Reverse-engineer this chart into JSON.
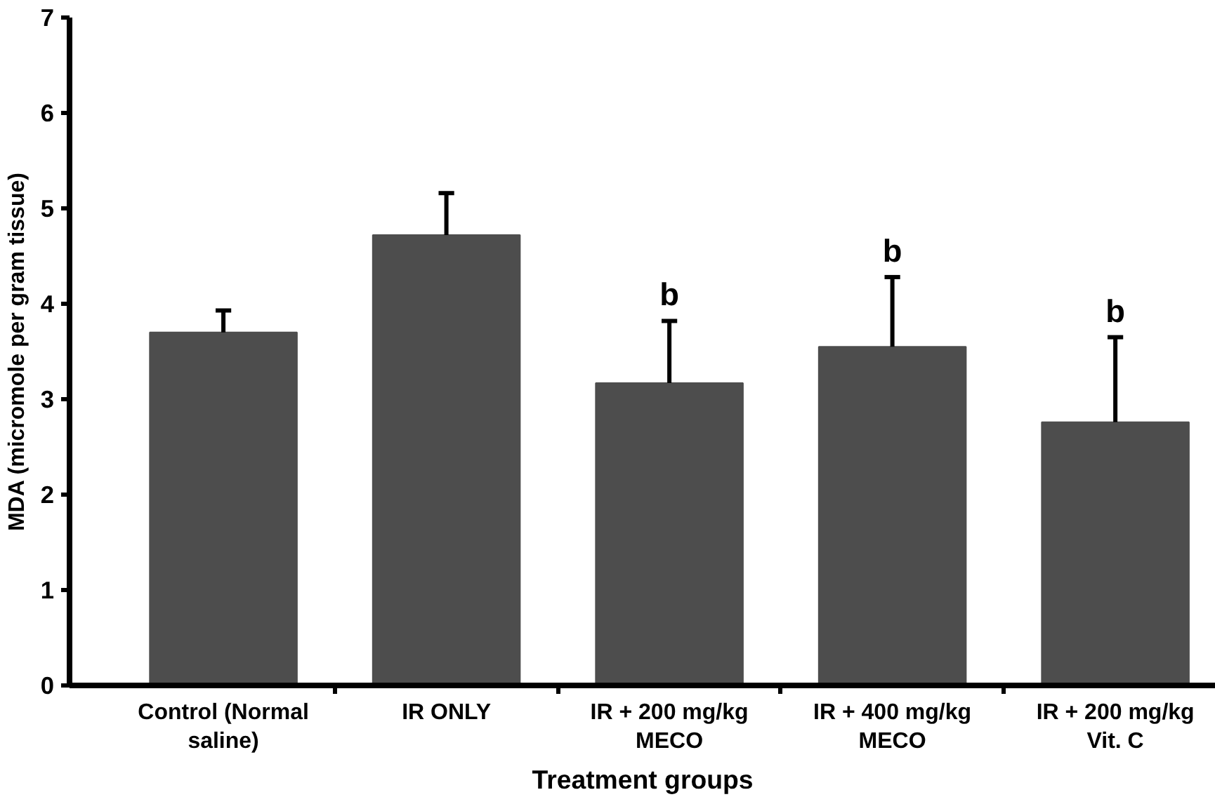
{
  "chart_data": {
    "type": "bar",
    "xlabel": "Treatment groups",
    "ylabel": "MDA (micromole per gram tissue)",
    "categories": [
      "Control (Normal saline)",
      "IR ONLY",
      "IR + 200 mg/kg MECO",
      "IR + 400 mg/kg MECO",
      "IR + 200 mg/kg Vit. C"
    ],
    "values": [
      3.7,
      4.72,
      3.17,
      3.55,
      2.76
    ],
    "errors": [
      [
        3.7,
        3.93
      ],
      [
        4.72,
        5.16
      ],
      [
        3.17,
        3.82
      ],
      [
        3.55,
        4.28
      ],
      [
        2.76,
        3.65
      ]
    ],
    "color": "#4d4d4d",
    "ylim": [
      0,
      7
    ],
    "yticks": [
      0,
      1,
      2,
      3,
      4,
      5,
      6,
      7
    ],
    "annotations": [
      {
        "text": "b",
        "x": "IR + 200 mg/kg MECO",
        "y": 3.82
      },
      {
        "text": "b",
        "x": "IR + 400 mg/kg MECO",
        "y": 4.28
      },
      {
        "text": "b",
        "x": "IR + 200 mg/kg Vit. C",
        "y": 3.65
      }
    ],
    "grid": false
  }
}
